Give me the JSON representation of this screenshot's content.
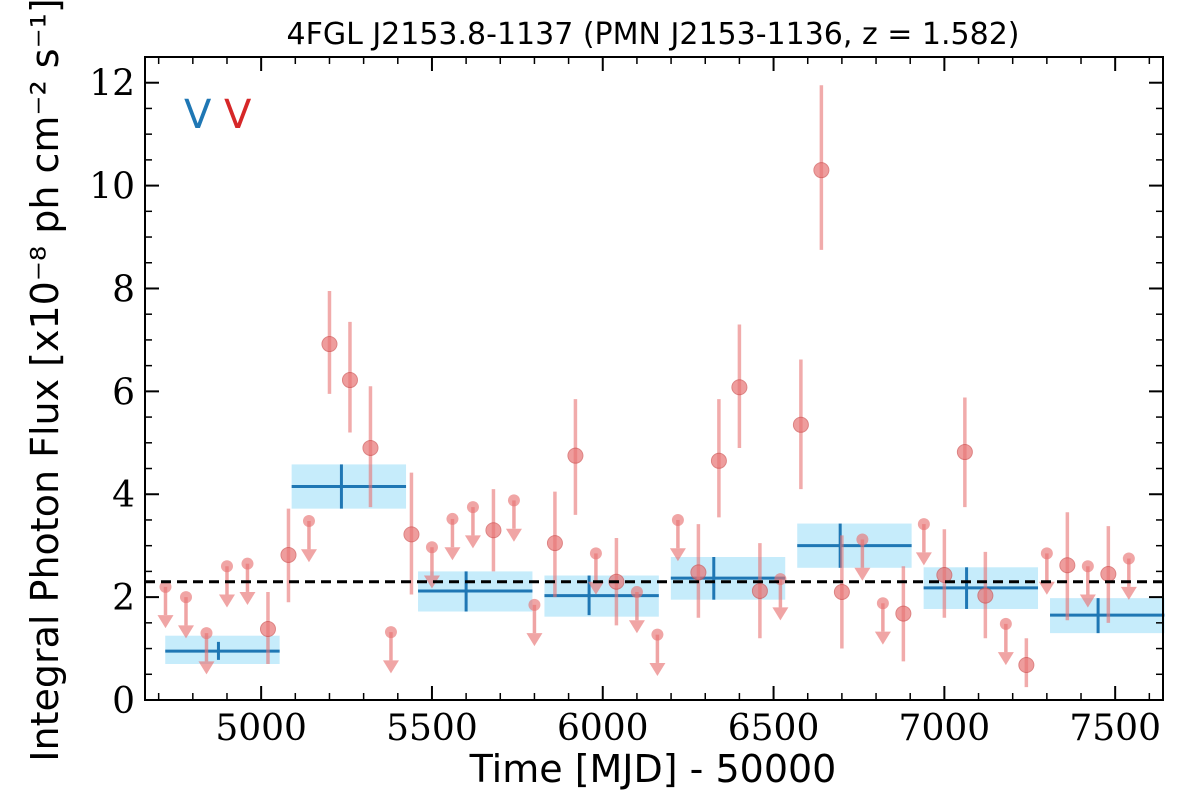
{
  "chart_data": {
    "type": "scatter",
    "title": "4FGL J2153.8-1137 (PMN J2153-1136, z = 1.582)",
    "xlabel": "Time [MJD] - 50000",
    "ylabel": "Integral Photon Flux [x10⁻⁸ ph cm⁻² s⁻¹]",
    "xlim": [
      4660,
      7640
    ],
    "ylim": [
      0,
      12.5
    ],
    "xticks": [
      "5000",
      "5500",
      "6000",
      "6500",
      "7000",
      "7500"
    ],
    "yticks": [
      "0",
      "2",
      "4",
      "6",
      "8",
      "10",
      "12"
    ],
    "grid": false,
    "mean_flux": 2.3,
    "markers": [
      {
        "label": "V",
        "color": "#1f77b4"
      },
      {
        "label": "V",
        "color": "#d62728"
      }
    ],
    "colors": {
      "bin_line": "#1f77b4",
      "bin_fill": "#c6ecfb",
      "point": "#e87474",
      "point_edge": "#d05050",
      "mean_line": "#000000"
    },
    "series": [
      {
        "name": "",
        "kind": "binned",
        "points": [
          {
            "x0": 4690,
            "x1": 5060,
            "y": 0.95,
            "lo": 0.7,
            "hi": 1.25,
            "xc": 4875,
            "err_lo": 0.78,
            "err_hi": 1.13
          },
          {
            "x0": 5060,
            "x1": 5430,
            "y": 4.15,
            "lo": 3.72,
            "hi": 4.58,
            "xc": 5235,
            "err_lo": 3.72,
            "err_hi": 4.58
          },
          {
            "x0": 5430,
            "x1": 5800,
            "y": 2.12,
            "lo": 1.72,
            "hi": 2.5,
            "xc": 5600,
            "err_lo": 1.72,
            "err_hi": 2.5
          },
          {
            "x0": 5800,
            "x1": 6170,
            "y": 2.03,
            "lo": 1.62,
            "hi": 2.42,
            "xc": 5960,
            "err_lo": 1.65,
            "err_hi": 2.42
          },
          {
            "x0": 6170,
            "x1": 6540,
            "y": 2.37,
            "lo": 1.95,
            "hi": 2.78,
            "xc": 6325,
            "err_lo": 1.95,
            "err_hi": 2.78
          },
          {
            "x0": 6540,
            "x1": 6910,
            "y": 3.0,
            "lo": 2.57,
            "hi": 3.43,
            "xc": 6695,
            "err_lo": 2.57,
            "err_hi": 3.43
          },
          {
            "x0": 6910,
            "x1": 7280,
            "y": 2.18,
            "lo": 1.77,
            "hi": 2.58,
            "xc": 7065,
            "err_lo": 1.77,
            "err_hi": 2.58
          },
          {
            "x0": 7280,
            "x1": 7650,
            "y": 1.65,
            "lo": 1.3,
            "hi": 1.98,
            "xc": 7450,
            "err_lo": 1.3,
            "err_hi": 1.98
          }
        ]
      },
      {
        "name": "",
        "kind": "fine",
        "points": [
          {
            "x": 4720,
            "y": 2.2,
            "ul": true
          },
          {
            "x": 4780,
            "y": 2.0,
            "ul": true
          },
          {
            "x": 4840,
            "y": 1.3,
            "ul": true
          },
          {
            "x": 4900,
            "y": 2.6,
            "ul": true
          },
          {
            "x": 4960,
            "y": 2.65,
            "ul": true
          },
          {
            "x": 5020,
            "y": 1.38,
            "lo": 0.7,
            "hi": 2.1
          },
          {
            "x": 5080,
            "y": 2.82,
            "lo": 1.9,
            "hi": 3.72
          },
          {
            "x": 5140,
            "y": 3.48,
            "ul": true
          },
          {
            "x": 5200,
            "y": 6.92,
            "lo": 5.95,
            "hi": 7.95
          },
          {
            "x": 5260,
            "y": 6.22,
            "lo": 5.2,
            "hi": 7.35
          },
          {
            "x": 5320,
            "y": 4.9,
            "lo": 3.75,
            "hi": 6.1
          },
          {
            "x": 5380,
            "y": 1.32,
            "ul": true
          },
          {
            "x": 5440,
            "y": 3.22,
            "lo": 2.05,
            "hi": 4.42
          },
          {
            "x": 5500,
            "y": 2.97,
            "ul": true
          },
          {
            "x": 5560,
            "y": 3.52,
            "ul": true
          },
          {
            "x": 5620,
            "y": 3.75,
            "ul": true
          },
          {
            "x": 5680,
            "y": 3.3,
            "lo": 2.5,
            "hi": 4.1
          },
          {
            "x": 5740,
            "y": 3.88,
            "ul": true
          },
          {
            "x": 5800,
            "y": 1.85,
            "ul": true
          },
          {
            "x": 5860,
            "y": 3.05,
            "lo": 2.0,
            "hi": 4.05
          },
          {
            "x": 5920,
            "y": 4.75,
            "lo": 3.6,
            "hi": 5.85
          },
          {
            "x": 5980,
            "y": 2.85,
            "ul": true
          },
          {
            "x": 6040,
            "y": 2.3,
            "lo": 1.45,
            "hi": 3.15
          },
          {
            "x": 6100,
            "y": 2.1,
            "ul": true
          },
          {
            "x": 6160,
            "y": 1.27,
            "ul": true
          },
          {
            "x": 6220,
            "y": 3.5,
            "ul": true
          },
          {
            "x": 6280,
            "y": 2.48,
            "lo": 1.6,
            "hi": 3.42
          },
          {
            "x": 6340,
            "y": 4.65,
            "lo": 3.55,
            "hi": 5.85
          },
          {
            "x": 6400,
            "y": 6.08,
            "lo": 4.9,
            "hi": 7.3
          },
          {
            "x": 6460,
            "y": 2.12,
            "lo": 1.2,
            "hi": 3.05
          },
          {
            "x": 6520,
            "y": 2.35,
            "ul": true
          },
          {
            "x": 6580,
            "y": 5.35,
            "lo": 4.1,
            "hi": 6.62
          },
          {
            "x": 6640,
            "y": 10.3,
            "lo": 8.75,
            "hi": 11.95
          },
          {
            "x": 6700,
            "y": 2.1,
            "lo": 1.0,
            "hi": 3.2
          },
          {
            "x": 6760,
            "y": 3.12,
            "ul": true
          },
          {
            "x": 6820,
            "y": 1.88,
            "ul": true
          },
          {
            "x": 6880,
            "y": 1.68,
            "lo": 0.75,
            "hi": 2.6
          },
          {
            "x": 6940,
            "y": 3.42,
            "ul": true
          },
          {
            "x": 7000,
            "y": 2.43,
            "lo": 1.6,
            "hi": 3.32
          },
          {
            "x": 7060,
            "y": 4.82,
            "lo": 3.75,
            "hi": 5.88
          },
          {
            "x": 7120,
            "y": 2.03,
            "lo": 1.2,
            "hi": 2.88
          },
          {
            "x": 7180,
            "y": 1.48,
            "ul": true
          },
          {
            "x": 7240,
            "y": 0.68,
            "lo": 0.25,
            "hi": 1.2
          },
          {
            "x": 7300,
            "y": 2.85,
            "ul": true
          },
          {
            "x": 7360,
            "y": 2.62,
            "lo": 1.55,
            "hi": 3.65
          },
          {
            "x": 7420,
            "y": 2.6,
            "ul": true
          },
          {
            "x": 7480,
            "y": 2.45,
            "lo": 1.5,
            "hi": 3.38
          },
          {
            "x": 7540,
            "y": 2.75,
            "ul": true
          }
        ]
      }
    ]
  }
}
